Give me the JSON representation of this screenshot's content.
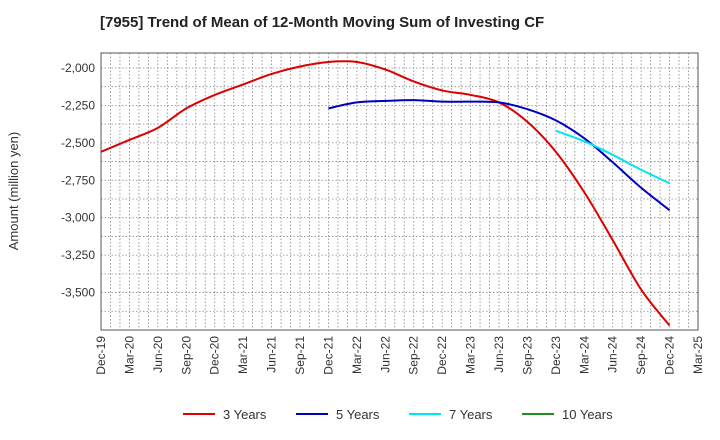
{
  "chart_data": {
    "type": "line",
    "title": "[7955]  Trend of Mean of 12-Month Moving Sum of Investing CF",
    "ylabel": "Amount (million yen)",
    "xlabel": "",
    "ylim": [
      -3750,
      -1900
    ],
    "yticks": [
      -2000,
      -2250,
      -2500,
      -2750,
      -3000,
      -3250,
      -3500
    ],
    "ytick_labels": [
      "-2,000",
      "-2,250",
      "-2,500",
      "-2,750",
      "-3,000",
      "-3,250",
      "-3,500"
    ],
    "grid": true,
    "categories": [
      "Dec-19",
      "Mar-20",
      "Jun-20",
      "Sep-20",
      "Dec-20",
      "Mar-21",
      "Jun-21",
      "Sep-21",
      "Dec-21",
      "Mar-22",
      "Jun-22",
      "Sep-22",
      "Dec-22",
      "Mar-23",
      "Jun-23",
      "Sep-23",
      "Dec-23",
      "Mar-24",
      "Jun-24",
      "Sep-24",
      "Dec-24",
      "Mar-25"
    ],
    "series": [
      {
        "name": "3 Years",
        "color": "#dd0000",
        "values": [
          -2560,
          -2480,
          -2400,
          -2270,
          -2180,
          -2110,
          -2040,
          -1990,
          -1960,
          -1960,
          -2010,
          -2090,
          -2150,
          -2180,
          -2230,
          -2360,
          -2560,
          -2830,
          -3150,
          -3480,
          -3720,
          null
        ]
      },
      {
        "name": "5 Years",
        "color": "#0000bb",
        "values": [
          null,
          null,
          null,
          null,
          null,
          null,
          null,
          null,
          -2270,
          -2230,
          -2220,
          -2215,
          -2225,
          -2225,
          -2230,
          -2275,
          -2350,
          -2470,
          -2630,
          -2800,
          -2950,
          null
        ]
      },
      {
        "name": "7 Years",
        "color": "#00e5ee",
        "values": [
          null,
          null,
          null,
          null,
          null,
          null,
          null,
          null,
          null,
          null,
          null,
          null,
          null,
          null,
          null,
          null,
          -2420,
          -2490,
          -2580,
          -2680,
          -2770,
          null
        ]
      },
      {
        "name": "10 Years",
        "color": "#228B22",
        "values": [
          null,
          null,
          null,
          null,
          null,
          null,
          null,
          null,
          null,
          null,
          null,
          null,
          null,
          null,
          null,
          null,
          null,
          null,
          null,
          null,
          null,
          null
        ]
      }
    ],
    "legend_position": "bottom"
  }
}
